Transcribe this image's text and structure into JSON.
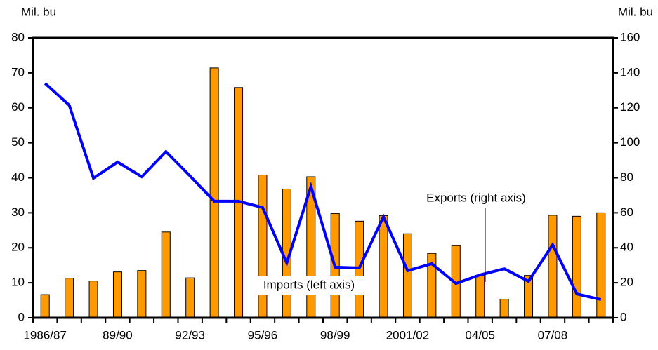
{
  "chart_data": {
    "type": "bar-line",
    "y_label": "Mil. bu",
    "y2_label": "Mil. bu",
    "categories": [
      "1986/87",
      null,
      null,
      "89/90",
      null,
      null,
      "92/93",
      null,
      null,
      "95/96",
      null,
      null,
      "98/99",
      null,
      null,
      "2001/02",
      null,
      null,
      "04/05",
      null,
      null,
      "07/08",
      null,
      null
    ],
    "series": [
      {
        "name": "Imports (left axis)",
        "type": "bar",
        "color": "#FF9900",
        "values": [
          6.6,
          11.3,
          10.5,
          13.1,
          13.5,
          24.5,
          11.4,
          71.4,
          65.8,
          40.8,
          36.8,
          40.3,
          29.8,
          27.6,
          29.2,
          24.0,
          18.4,
          20.6,
          12.1,
          5.3,
          12.1,
          29.3,
          29.0,
          30.0
        ]
      },
      {
        "name": "Exports (right axis)",
        "type": "line",
        "axis": "y2",
        "color": "#0000FF",
        "values": [
          134,
          121.5,
          79.8,
          89,
          80.6,
          95,
          81,
          66.6,
          66.6,
          63,
          31.3,
          75,
          28.9,
          28.5,
          57.7,
          26.9,
          30.9,
          19.6,
          24.5,
          28,
          20.8,
          41.7,
          13.6,
          10.4
        ]
      }
    ],
    "ylim": [
      0,
      80
    ],
    "yticks": [
      0,
      10,
      20,
      30,
      40,
      50,
      60,
      70,
      80
    ],
    "y2lim": [
      0,
      160
    ],
    "y2ticks": [
      0,
      20,
      40,
      60,
      80,
      100,
      120,
      140,
      160
    ]
  }
}
